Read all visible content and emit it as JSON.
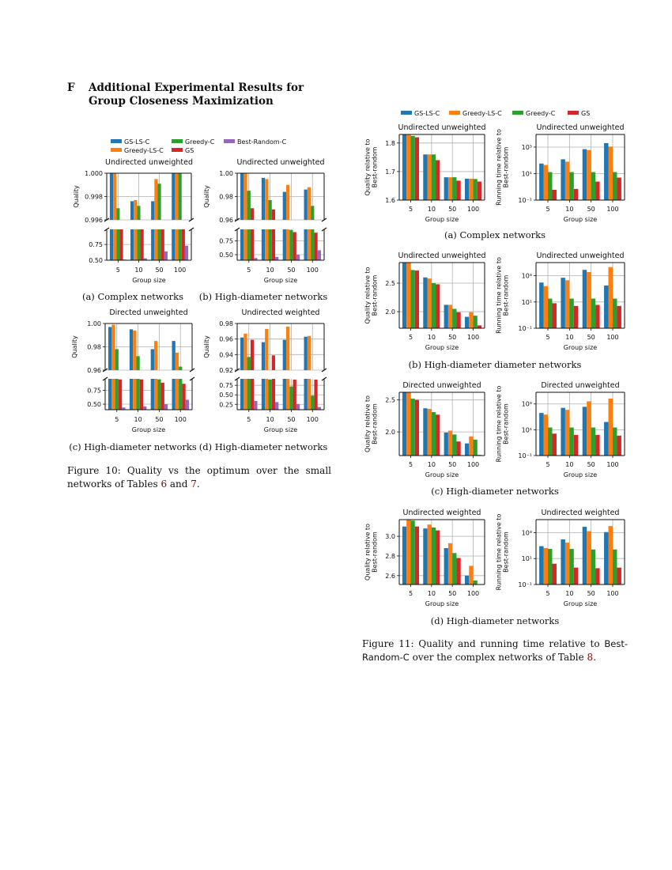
{
  "section": {
    "number": "F",
    "title": "Additional Experimental Results for Group Closeness Maximization"
  },
  "colors": {
    "GS-LS-C": "#1f77b4",
    "Greedy-LS-C": "#ff7f0e",
    "Greedy-C": "#2ca02c",
    "GS": "#d62728",
    "Best-Random-C": "#9467bd"
  },
  "figure10": {
    "legend": [
      "GS-LS-C",
      "Greedy-C",
      "Best-Random-C",
      "Greedy-LS-C",
      "GS"
    ],
    "subcaptions": [
      "(a) Complex networks",
      "(b) High-diameter networks",
      "(c) High-diameter networks",
      "(d) High-diameter networks"
    ],
    "caption": {
      "text1": "Figure 10:  Quality vs the optimum over the small networks of Tables ",
      "ref1": "6",
      "text2": " and ",
      "ref2": "7",
      "text3": "."
    }
  },
  "figure11": {
    "legend": [
      "GS-LS-C",
      "Greedy-LS-C",
      "Greedy-C",
      "GS"
    ],
    "subcaptions": [
      "(a) Complex networks",
      "(b) High-diameter diameter networks",
      "(c) High-diameter networks",
      "(d) High-diameter networks"
    ],
    "caption": {
      "text1": "Figure 11: Quality and running time relative to ",
      "sans": "Best-Random-C",
      "text2": " over the complex networks of Table ",
      "ref": "8",
      "text3": "."
    }
  },
  "chart_data": [
    {
      "type": "bar",
      "figure": "10a",
      "title": "Undirected unweighted",
      "ylabel": [
        "Quality"
      ],
      "xlabel": "Group size",
      "categories": [
        "5",
        "10",
        "50",
        "100"
      ],
      "broken_axis": true,
      "upper": {
        "ylim": [
          0.996,
          1.0
        ],
        "ticks": [
          0.996,
          0.998,
          1.0
        ],
        "tick_labels": [
          "0.996",
          "0.998",
          "1.000"
        ]
      },
      "lower": {
        "ylim": [
          0.5,
          0.99
        ],
        "ticks": [
          0.5,
          0.75
        ],
        "tick_labels": [
          "0.50",
          "0.75"
        ]
      },
      "grid": true,
      "series": [
        {
          "name": "GS-LS-C",
          "values": [
            1.0,
            0.9976,
            0.9976,
            1.0
          ]
        },
        {
          "name": "Greedy-LS-C",
          "values": [
            1.0,
            0.9977,
            0.9995,
            1.0
          ]
        },
        {
          "name": "Greedy-C",
          "values": [
            0.997,
            0.9972,
            0.9991,
            1.0
          ]
        },
        {
          "name": "GS",
          "values": [
            0.993,
            0.993,
            0.993,
            0.993
          ]
        },
        {
          "name": "Best-Random-C",
          "values": [
            0.51,
            0.53,
            0.64,
            0.73
          ]
        }
      ]
    },
    {
      "type": "bar",
      "figure": "10b",
      "title": "Undirected unweighted",
      "ylabel": [
        "Quality"
      ],
      "xlabel": "Group size",
      "categories": [
        "5",
        "10",
        "50",
        "100"
      ],
      "broken_axis": true,
      "upper": {
        "ylim": [
          0.96,
          1.0
        ],
        "ticks": [
          0.96,
          0.98,
          1.0
        ],
        "tick_labels": [
          "0.96",
          "0.98",
          "1.00"
        ]
      },
      "lower": {
        "ylim": [
          0.4,
          0.96
        ],
        "ticks": [
          0.5,
          0.75
        ],
        "tick_labels": [
          "0.50",
          "0.75"
        ]
      },
      "grid": true,
      "series": [
        {
          "name": "GS-LS-C",
          "values": [
            1.0,
            0.996,
            0.984,
            0.986
          ]
        },
        {
          "name": "Greedy-LS-C",
          "values": [
            1.0,
            0.995,
            0.99,
            0.988
          ]
        },
        {
          "name": "Greedy-C",
          "values": [
            0.985,
            0.977,
            0.95,
            0.972
          ]
        },
        {
          "name": "GS",
          "values": [
            0.97,
            0.969,
            0.91,
            0.9
          ]
        },
        {
          "name": "Best-Random-C",
          "values": [
            0.44,
            0.46,
            0.5,
            0.58
          ]
        }
      ]
    },
    {
      "type": "bar",
      "figure": "10c",
      "title": "Directed unweighted",
      "ylabel": [
        "Quality"
      ],
      "xlabel": "Group size",
      "categories": [
        "5",
        "10",
        "50",
        "100"
      ],
      "broken_axis": true,
      "upper": {
        "ylim": [
          0.96,
          1.0
        ],
        "ticks": [
          0.96,
          0.98,
          1.0
        ],
        "tick_labels": [
          "0.96",
          "0.98",
          "1.00"
        ]
      },
      "lower": {
        "ylim": [
          0.4,
          0.96
        ],
        "ticks": [
          0.5,
          0.75
        ],
        "tick_labels": [
          "0.50",
          "0.75"
        ]
      },
      "grid": true,
      "series": [
        {
          "name": "GS-LS-C",
          "values": [
            0.997,
            0.995,
            0.978,
            0.985
          ]
        },
        {
          "name": "Greedy-LS-C",
          "values": [
            0.999,
            0.994,
            0.985,
            0.975
          ]
        },
        {
          "name": "Greedy-C",
          "values": [
            0.978,
            0.972,
            0.95,
            0.963
          ]
        },
        {
          "name": "GS",
          "values": [
            0.95,
            0.95,
            0.89,
            0.87
          ]
        },
        {
          "name": "Best-Random-C",
          "values": [
            0.44,
            0.46,
            0.5,
            0.58
          ]
        }
      ]
    },
    {
      "type": "bar",
      "figure": "10d",
      "title": "Undirected weighted",
      "ylabel": [
        "Quality"
      ],
      "xlabel": "Group size",
      "categories": [
        "5",
        "10",
        "50",
        "100"
      ],
      "broken_axis": true,
      "upper": {
        "ylim": [
          0.92,
          0.98
        ],
        "ticks": [
          0.92,
          0.94,
          0.96,
          0.98
        ],
        "tick_labels": [
          "0.92",
          "0.94",
          "0.96",
          "0.98"
        ]
      },
      "lower": {
        "ylim": [
          0.11,
          0.92
        ],
        "ticks": [
          0.25,
          0.5,
          0.75
        ],
        "tick_labels": [
          "0.25",
          "0.50",
          "0.75"
        ]
      },
      "grid": true,
      "series": [
        {
          "name": "GS-LS-C",
          "values": [
            0.962,
            0.956,
            0.959,
            0.963
          ]
        },
        {
          "name": "Greedy-LS-C",
          "values": [
            0.967,
            0.973,
            0.976,
            0.964
          ]
        },
        {
          "name": "Greedy-C",
          "values": [
            0.937,
            0.9,
            0.72,
            0.48
          ]
        },
        {
          "name": "GS",
          "values": [
            0.959,
            0.939,
            0.9,
            0.9
          ]
        },
        {
          "name": "Best-Random-C",
          "values": [
            0.34,
            0.31,
            0.26,
            0.18
          ]
        }
      ]
    },
    {
      "type": "bar",
      "figure": "11a-quality",
      "title": "Undirected unweighted",
      "ylabel": [
        "Quality relative to",
        "Best-random"
      ],
      "xlabel": "Group size",
      "categories": [
        "5",
        "10",
        "50",
        "100"
      ],
      "yscale": "linear",
      "ylim": [
        1.6,
        1.83
      ],
      "ticks": [
        1.6,
        1.7,
        1.8
      ],
      "tick_labels": [
        "1.6",
        "1.7",
        "1.8"
      ],
      "grid": true,
      "series": [
        {
          "name": "GS-LS-C",
          "values": [
            1.83,
            1.76,
            1.68,
            1.675
          ]
        },
        {
          "name": "Greedy-LS-C",
          "values": [
            1.83,
            1.76,
            1.68,
            1.675
          ]
        },
        {
          "name": "Greedy-C",
          "values": [
            1.825,
            1.76,
            1.68,
            1.674
          ]
        },
        {
          "name": "GS",
          "values": [
            1.82,
            1.74,
            1.668,
            1.665
          ]
        }
      ]
    },
    {
      "type": "bar",
      "figure": "11a-time",
      "title": "Undirected unweighted",
      "ylabel": [
        "Running time relative to",
        "Best-random"
      ],
      "xlabel": "Group size",
      "categories": [
        "5",
        "10",
        "50",
        "100"
      ],
      "yscale": "log",
      "ylim": [
        0.1,
        9000
      ],
      "ticks": [
        0.1,
        10,
        1000
      ],
      "tick_labels": [
        "10⁻¹",
        "10¹",
        "10³"
      ],
      "grid": true,
      "series": [
        {
          "name": "GS-LS-C",
          "values": [
            57,
            120,
            700,
            2000
          ]
        },
        {
          "name": "Greedy-LS-C",
          "values": [
            45,
            80,
            600,
            1100
          ]
        },
        {
          "name": "Greedy-C",
          "values": [
            13,
            13,
            13,
            13
          ]
        },
        {
          "name": "GS",
          "values": [
            0.6,
            0.7,
            2.5,
            5
          ]
        }
      ]
    },
    {
      "type": "bar",
      "figure": "11b-quality",
      "title": "Undirected unweighted",
      "ylabel": [
        "Quality relative to",
        "Best-random"
      ],
      "xlabel": "Group size",
      "categories": [
        "5",
        "10",
        "50",
        "100"
      ],
      "yscale": "linear",
      "ylim": [
        1.71,
        2.86
      ],
      "ticks": [
        2.0,
        2.5
      ],
      "tick_labels": [
        "2.0",
        "2.5"
      ],
      "grid": true,
      "series": [
        {
          "name": "GS-LS-C",
          "values": [
            2.86,
            2.6,
            2.12,
            1.91
          ]
        },
        {
          "name": "Greedy-LS-C",
          "values": [
            2.86,
            2.58,
            2.12,
            1.99
          ]
        },
        {
          "name": "Greedy-C",
          "values": [
            2.73,
            2.5,
            2.05,
            1.93
          ]
        },
        {
          "name": "GS",
          "values": [
            2.72,
            2.48,
            1.99,
            1.76
          ]
        }
      ]
    },
    {
      "type": "bar",
      "figure": "11b-time",
      "title": "Undirected unweighted",
      "ylabel": [
        "Running time relative to",
        "Best-random"
      ],
      "xlabel": "Group size",
      "categories": [
        "5",
        "10",
        "50",
        "100"
      ],
      "yscale": "log",
      "ylim": [
        0.1,
        10000
      ],
      "ticks": [
        0.1,
        10,
        1000
      ],
      "tick_labels": [
        "10⁻¹",
        "10¹",
        "10³"
      ],
      "grid": true,
      "series": [
        {
          "name": "GS-LS-C",
          "values": [
            300,
            700,
            2800,
            180
          ]
        },
        {
          "name": "Greedy-LS-C",
          "values": [
            160,
            450,
            1900,
            4500
          ]
        },
        {
          "name": "Greedy-C",
          "values": [
            18,
            18,
            18,
            18
          ]
        },
        {
          "name": "GS",
          "values": [
            8,
            5,
            6,
            5
          ]
        }
      ]
    },
    {
      "type": "bar",
      "figure": "11c-quality",
      "title": "Directed unweighted",
      "ylabel": [
        "Quality relative to",
        "Best-random"
      ],
      "xlabel": "Group size",
      "categories": [
        "5",
        "10",
        "50",
        "100"
      ],
      "yscale": "linear",
      "ylim": [
        1.63,
        2.62
      ],
      "ticks": [
        2.0,
        2.5
      ],
      "tick_labels": [
        "2.0",
        "2.5"
      ],
      "grid": true,
      "series": [
        {
          "name": "GS-LS-C",
          "values": [
            2.62,
            2.37,
            1.99,
            1.82
          ]
        },
        {
          "name": "Greedy-LS-C",
          "values": [
            2.62,
            2.36,
            2.02,
            1.93
          ]
        },
        {
          "name": "Greedy-C",
          "values": [
            2.52,
            2.31,
            1.96,
            1.88
          ]
        },
        {
          "name": "GS",
          "values": [
            2.5,
            2.27,
            1.85,
            1.64
          ]
        }
      ]
    },
    {
      "type": "bar",
      "figure": "11c-time",
      "title": "Directed unweighted",
      "ylabel": [
        "Running time relative to",
        "Best-random"
      ],
      "xlabel": "Group size",
      "categories": [
        "5",
        "10",
        "50",
        "100"
      ],
      "yscale": "log",
      "ylim": [
        0.1,
        8000
      ],
      "ticks": [
        0.1,
        10,
        1000
      ],
      "tick_labels": [
        "10⁻¹",
        "10¹",
        "10³"
      ],
      "grid": true,
      "series": [
        {
          "name": "GS-LS-C",
          "values": [
            200,
            500,
            600,
            40
          ]
        },
        {
          "name": "Greedy-LS-C",
          "values": [
            150,
            350,
            1600,
            2600
          ]
        },
        {
          "name": "Greedy-C",
          "values": [
            15,
            15,
            15,
            15
          ]
        },
        {
          "name": "GS",
          "values": [
            5,
            4,
            4,
            3.5
          ]
        }
      ]
    },
    {
      "type": "bar",
      "figure": "11d-quality",
      "title": "Undirected weighted",
      "ylabel": [
        "Quality relative to",
        "Best-random"
      ],
      "xlabel": "Group size",
      "categories": [
        "5",
        "10",
        "50",
        "100"
      ],
      "yscale": "linear",
      "ylim": [
        2.51,
        3.17
      ],
      "ticks": [
        2.6,
        2.8,
        3.0
      ],
      "tick_labels": [
        "2.6",
        "2.8",
        "3.0"
      ],
      "grid": true,
      "series": [
        {
          "name": "GS-LS-C",
          "values": [
            3.1,
            3.08,
            2.88,
            2.6
          ]
        },
        {
          "name": "Greedy-LS-C",
          "values": [
            3.17,
            3.12,
            2.93,
            2.7
          ]
        },
        {
          "name": "Greedy-C",
          "values": [
            3.16,
            3.09,
            2.83,
            2.55
          ]
        },
        {
          "name": "GS",
          "values": [
            3.1,
            3.06,
            2.78,
            2.51
          ]
        }
      ]
    },
    {
      "type": "bar",
      "figure": "11d-time",
      "title": "Undirected weighted",
      "ylabel": [
        "Running time relative to",
        "Best-random"
      ],
      "xlabel": "Group size",
      "categories": [
        "5",
        "10",
        "50",
        "100"
      ],
      "yscale": "log",
      "ylim": [
        0.1,
        10000
      ],
      "ticks": [
        0.1,
        10,
        1000
      ],
      "tick_labels": [
        "10⁻¹",
        "10¹",
        "10³"
      ],
      "grid": true,
      "series": [
        {
          "name": "GS-LS-C",
          "values": [
            90,
            300,
            2800,
            1100
          ]
        },
        {
          "name": "Greedy-LS-C",
          "values": [
            65,
            170,
            1300,
            3200
          ]
        },
        {
          "name": "Greedy-C",
          "values": [
            55,
            55,
            50,
            50
          ]
        },
        {
          "name": "GS",
          "values": [
            4,
            2,
            1.8,
            2
          ]
        }
      ]
    }
  ]
}
